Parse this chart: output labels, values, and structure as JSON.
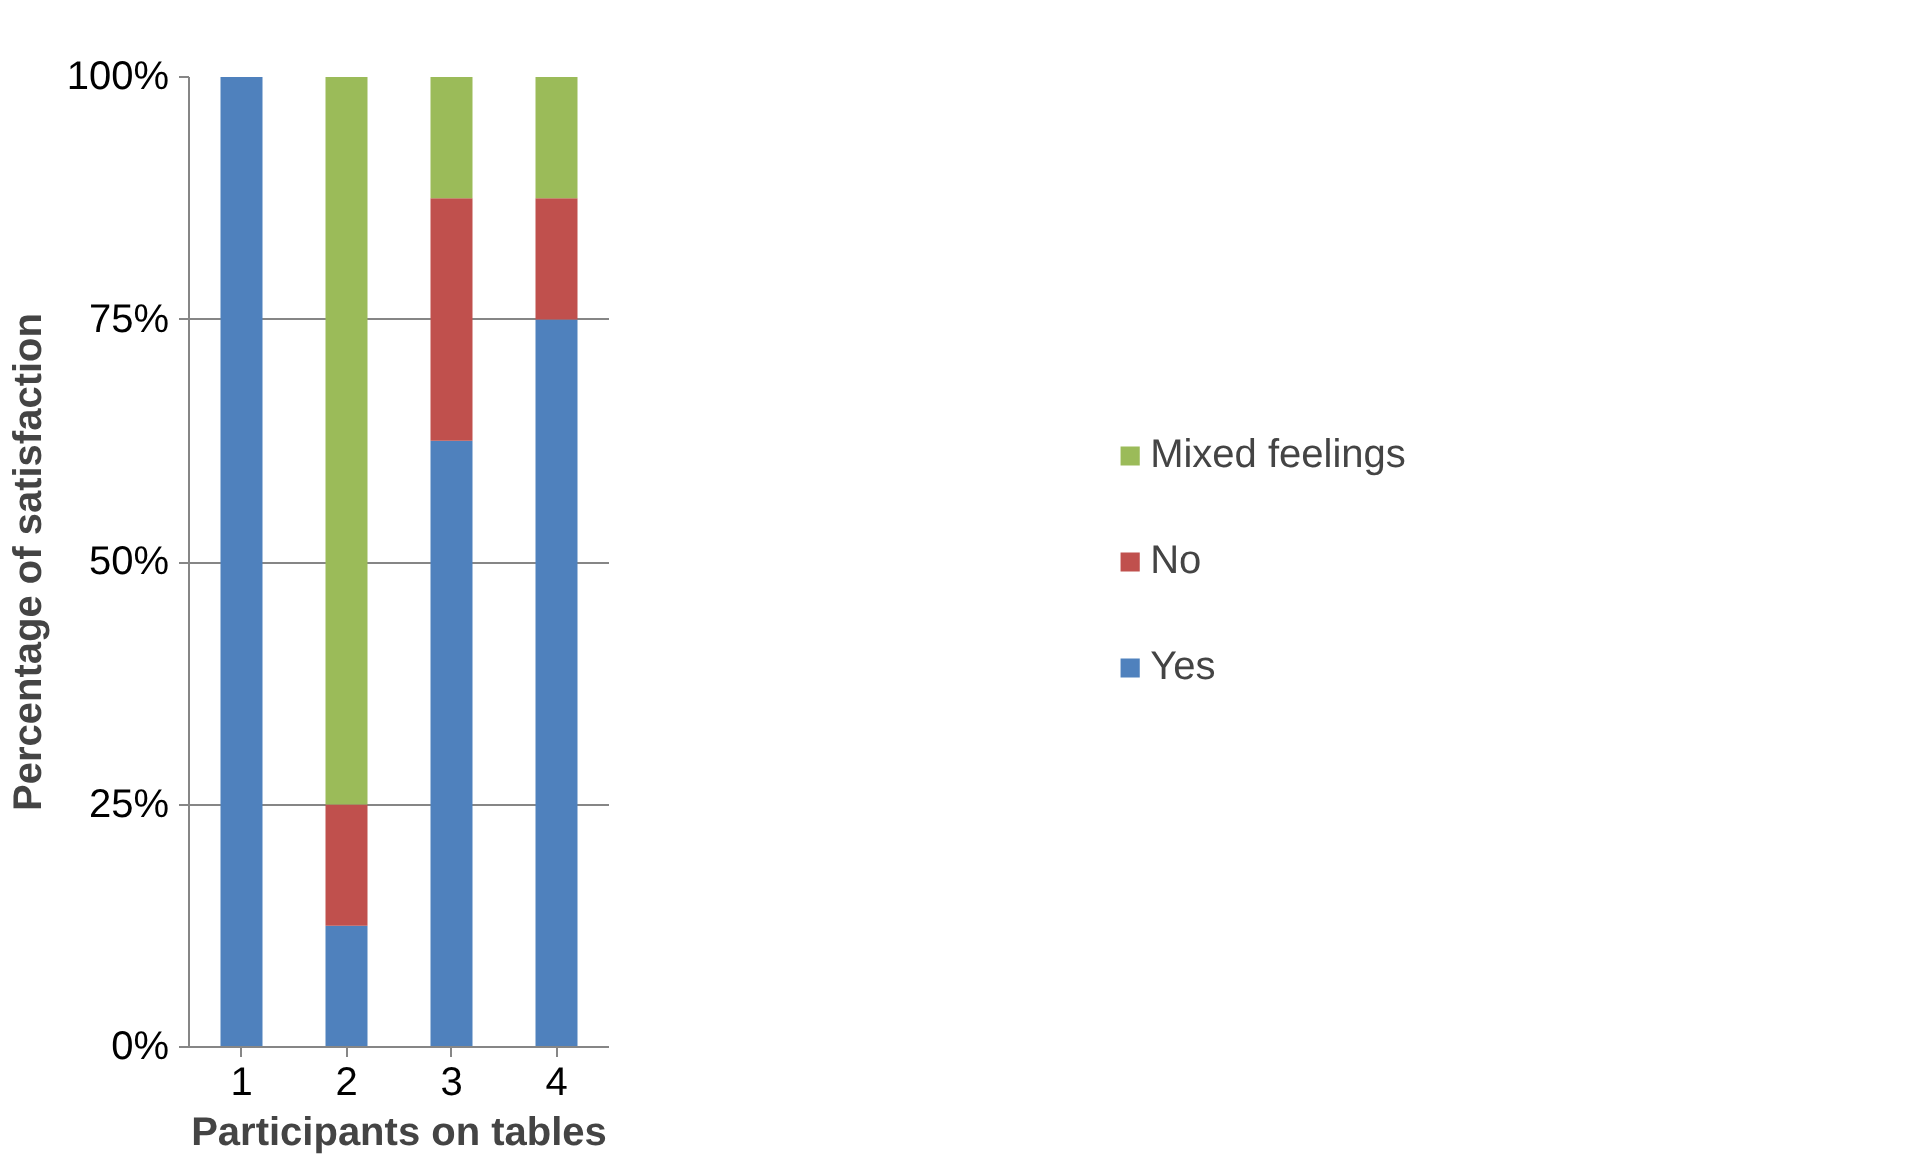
{
  "chart_data": {
    "type": "bar",
    "stacked": true,
    "xlabel": "Participants on tables",
    "ylabel": "Percentage of satisfaction",
    "categories": [
      "1",
      "2",
      "3",
      "4"
    ],
    "series": [
      {
        "name": "Yes",
        "color": "#4f81bd",
        "values": [
          100,
          12.5,
          62.5,
          75
        ]
      },
      {
        "name": "No",
        "color": "#c0504d",
        "values": [
          0,
          12.5,
          25,
          12.5
        ]
      },
      {
        "name": "Mixed feelings",
        "color": "#9bbb59",
        "values": [
          0,
          75,
          12.5,
          12.5
        ]
      }
    ],
    "ylim": [
      0,
      100
    ],
    "yticks": [
      {
        "value": 0,
        "label": "0%"
      },
      {
        "value": 25,
        "label": "25%"
      },
      {
        "value": 50,
        "label": "50%"
      },
      {
        "value": 75,
        "label": "75%"
      },
      {
        "value": 100,
        "label": "100%"
      }
    ],
    "grid": "y",
    "legend": "right"
  }
}
